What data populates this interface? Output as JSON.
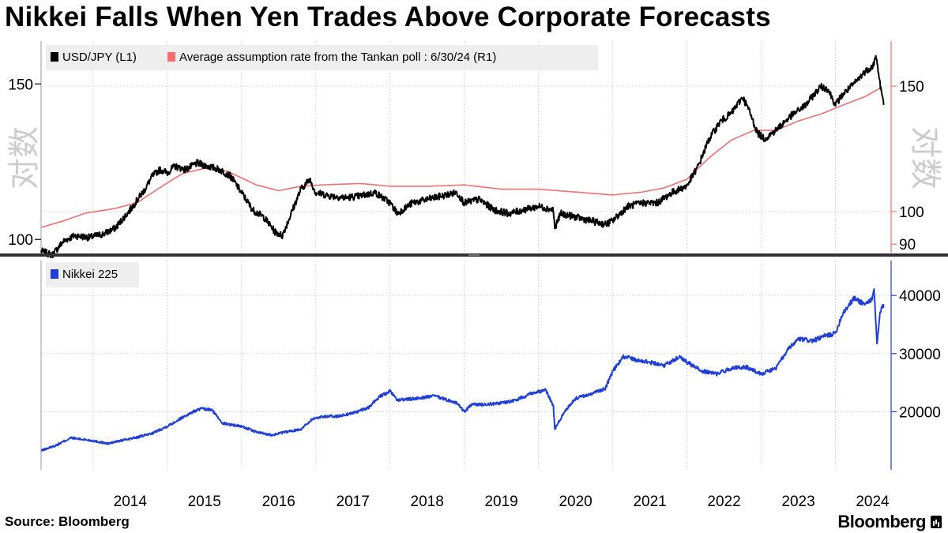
{
  "title": "Nikkei Falls When Yen Trades Above Corporate Forecasts",
  "source": "Source: Bloomberg",
  "brand": "Bloomberg",
  "colors": {
    "usdjpy": "#000000",
    "tankan": "#f07070",
    "nikkei": "#1f3fd6",
    "grid": "#d8d8d8",
    "legend_bg": "#eeeeee"
  },
  "chart_data": [
    {
      "type": "line",
      "title": "Nikkei Falls When Yen Trades Above Corporate Forecasts",
      "legend": [
        "USD/JPY (L1)",
        "Average assumption rate from the Tankan poll : 6/30/24 (R1)"
      ],
      "legend_placement": "top-left",
      "scale_label": "对数",
      "x_range": [
        2013.3,
        2024.75
      ],
      "left_axis": {
        "ticks": [
          100,
          150
        ],
        "ylim": [
          97,
          165
        ],
        "scale": "log"
      },
      "right_axis": {
        "ticks": [
          90,
          100,
          150
        ],
        "ylim": [
          88,
          170
        ],
        "scale": "log"
      },
      "series": [
        {
          "name": "USD/JPY",
          "axis": "left",
          "x": [
            2013.3,
            2013.45,
            2013.6,
            2013.75,
            2013.95,
            2014.15,
            2014.3,
            2014.5,
            2014.7,
            2014.8,
            2014.9,
            2015.0,
            2015.1,
            2015.25,
            2015.4,
            2015.55,
            2015.7,
            2015.85,
            2016.0,
            2016.15,
            2016.3,
            2016.45,
            2016.55,
            2016.65,
            2016.8,
            2016.92,
            2017.0,
            2017.2,
            2017.4,
            2017.6,
            2017.8,
            2018.0,
            2018.1,
            2018.3,
            2018.5,
            2018.7,
            2018.9,
            2019.0,
            2019.2,
            2019.4,
            2019.6,
            2019.8,
            2020.0,
            2020.2,
            2020.22,
            2020.3,
            2020.5,
            2020.7,
            2020.9,
            2021.0,
            2021.2,
            2021.4,
            2021.6,
            2021.8,
            2022.0,
            2022.15,
            2022.3,
            2022.45,
            2022.6,
            2022.75,
            2022.82,
            2022.95,
            2023.05,
            2023.2,
            2023.4,
            2023.6,
            2023.8,
            2023.9,
            2024.0,
            2024.1,
            2024.25,
            2024.4,
            2024.5,
            2024.55,
            2024.6,
            2024.65
          ],
          "values": [
            97,
            96,
            99.5,
            101,
            100.5,
            101.5,
            103,
            108,
            114,
            118,
            120,
            119,
            121,
            120,
            122,
            121,
            120,
            118,
            113,
            108,
            106,
            102,
            101,
            106,
            114,
            117,
            113,
            112,
            111.5,
            112,
            113,
            110,
            107,
            110,
            111,
            112,
            113,
            110,
            111,
            108,
            107,
            108,
            109,
            108,
            103,
            107,
            106,
            105,
            104,
            105,
            109,
            110,
            110,
            113,
            115,
            121,
            130,
            136,
            139,
            145,
            141,
            132,
            130,
            133,
            138,
            142,
            149,
            148,
            142,
            146,
            150,
            155,
            157,
            161,
            150,
            142
          ]
        },
        {
          "name": "Tankan average assumption rate",
          "axis": "right",
          "x": [
            2013.3,
            2013.6,
            2013.9,
            2014.3,
            2014.6,
            2014.9,
            2015.2,
            2015.5,
            2015.8,
            2016.2,
            2016.5,
            2016.8,
            2017.1,
            2017.6,
            2018.0,
            2018.5,
            2019.0,
            2019.5,
            2020.0,
            2020.5,
            2021.0,
            2021.4,
            2021.7,
            2022.0,
            2022.3,
            2022.6,
            2022.9,
            2023.2,
            2023.5,
            2023.8,
            2024.1,
            2024.4,
            2024.6
          ],
          "values": [
            95,
            97,
            99.5,
            101,
            103,
            108,
            113,
            115,
            114,
            109,
            107,
            108.5,
            109,
            109.5,
            108.5,
            108.5,
            109,
            107.5,
            107.5,
            106.5,
            105.5,
            106.5,
            108,
            111,
            119,
            126,
            130,
            130,
            134,
            137,
            141,
            145,
            149
          ]
        }
      ]
    },
    {
      "type": "line",
      "legend": [
        "Nikkei 225"
      ],
      "legend_placement": "top-left",
      "x_ticks": [
        "2014",
        "2015",
        "2016",
        "2017",
        "2018",
        "2019",
        "2020",
        "2021",
        "2022",
        "2023",
        "2024"
      ],
      "right_axis": {
        "ticks": [
          20000,
          30000,
          40000
        ],
        "ylim": [
          10000,
          46000
        ],
        "scale": "linear"
      },
      "series": [
        {
          "name": "Nikkei 225",
          "x": [
            2013.3,
            2013.5,
            2013.7,
            2014.0,
            2014.2,
            2014.4,
            2014.6,
            2014.8,
            2015.0,
            2015.2,
            2015.35,
            2015.45,
            2015.6,
            2015.75,
            2016.0,
            2016.2,
            2016.4,
            2016.6,
            2016.8,
            2016.95,
            2017.1,
            2017.3,
            2017.5,
            2017.7,
            2017.85,
            2018.0,
            2018.1,
            2018.3,
            2018.6,
            2018.9,
            2019.0,
            2019.1,
            2019.3,
            2019.5,
            2019.7,
            2019.9,
            2020.1,
            2020.2,
            2020.22,
            2020.35,
            2020.5,
            2020.7,
            2020.9,
            2021.0,
            2021.15,
            2021.3,
            2021.5,
            2021.7,
            2021.9,
            2022.0,
            2022.2,
            2022.4,
            2022.6,
            2022.8,
            2023.0,
            2023.2,
            2023.35,
            2023.5,
            2023.7,
            2023.85,
            2024.0,
            2024.1,
            2024.25,
            2024.4,
            2024.5,
            2024.52,
            2024.56,
            2024.6,
            2024.65
          ],
          "values": [
            13300,
            14200,
            15500,
            15000,
            14500,
            15100,
            15600,
            16300,
            17500,
            19000,
            20000,
            20500,
            20300,
            18000,
            17500,
            16500,
            16000,
            16500,
            17000,
            18700,
            19200,
            19200,
            19800,
            20600,
            22500,
            23500,
            22000,
            22200,
            22700,
            21500,
            20000,
            21200,
            21300,
            21500,
            22000,
            23200,
            23700,
            21000,
            17000,
            20000,
            22300,
            23000,
            24000,
            27000,
            29500,
            29000,
            28500,
            28000,
            29500,
            28500,
            27000,
            26500,
            27500,
            27700,
            26500,
            27500,
            30500,
            32500,
            32200,
            33000,
            33500,
            37000,
            39500,
            38500,
            39500,
            41000,
            31500,
            37000,
            38500
          ]
        }
      ]
    }
  ]
}
